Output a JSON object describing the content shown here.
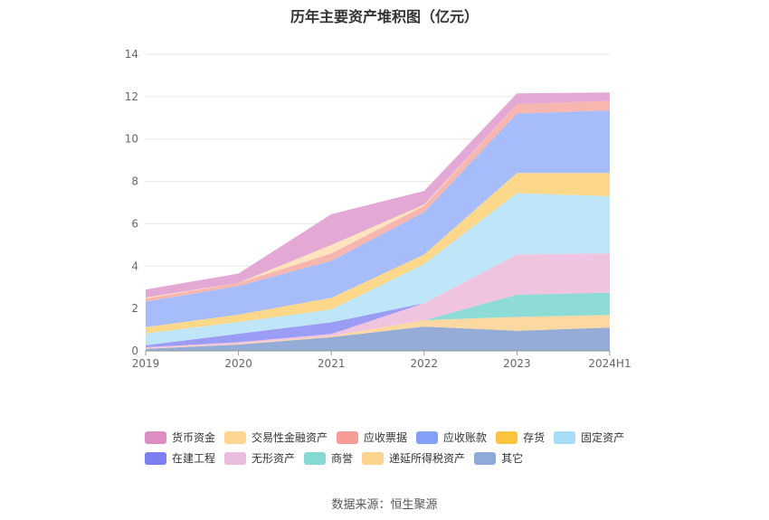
{
  "title": "历年主要资产堆积图（亿元）",
  "source": "数据来源：恒生聚源",
  "chart_data": {
    "type": "area",
    "stacked": true,
    "categories": [
      "2019",
      "2020",
      "2021",
      "2022",
      "2023",
      "2024H1"
    ],
    "ylim": [
      0,
      14
    ],
    "yticks": [
      0,
      2,
      4,
      6,
      8,
      10,
      12,
      14
    ],
    "grid": true,
    "legend_position": "bottom",
    "series": [
      {
        "name": "其它",
        "color": "#94acd6",
        "values": [
          0.1,
          0.3,
          0.65,
          1.15,
          0.95,
          1.1
        ]
      },
      {
        "name": "递延所得税资产",
        "color": "#fdd8a3",
        "values": [
          0.02,
          0.03,
          0.05,
          0.3,
          0.65,
          0.6
        ]
      },
      {
        "name": "商誉",
        "color": "#8ddcd6",
        "values": [
          0.0,
          0.0,
          0.0,
          0.0,
          1.05,
          1.05
        ]
      },
      {
        "name": "无形资产",
        "color": "#f0c3df",
        "values": [
          0.05,
          0.08,
          0.1,
          0.8,
          1.9,
          1.85
        ]
      },
      {
        "name": "在建工程",
        "color": "#9b9cf5",
        "values": [
          0.1,
          0.4,
          0.55,
          0.0,
          0.0,
          0.0
        ]
      },
      {
        "name": "固定资产",
        "color": "#bfe6f8",
        "values": [
          0.55,
          0.55,
          0.6,
          1.85,
          2.9,
          2.7
        ]
      },
      {
        "name": "存货",
        "color": "#fdd88a",
        "values": [
          0.3,
          0.35,
          0.55,
          0.45,
          0.95,
          1.1
        ]
      },
      {
        "name": "应收账款",
        "color": "#a6bcfb",
        "values": [
          1.2,
          1.35,
          1.75,
          2.0,
          2.8,
          2.95
        ]
      },
      {
        "name": "应收票据",
        "color": "#f8b6b0",
        "values": [
          0.15,
          0.15,
          0.35,
          0.3,
          0.45,
          0.45
        ]
      },
      {
        "name": "交易性金融资产",
        "color": "#fde3be",
        "values": [
          0.05,
          0.0,
          0.4,
          0.05,
          0.0,
          0.0
        ]
      },
      {
        "name": "货币资金",
        "color": "#e3a8d3",
        "values": [
          0.38,
          0.44,
          1.45,
          0.65,
          0.5,
          0.4
        ]
      }
    ]
  },
  "legend": {
    "rows": [
      [
        {
          "label": "货币资金",
          "color": "#dd8dc4"
        },
        {
          "label": "交易性金融资产",
          "color": "#fdd593"
        },
        {
          "label": "应收票据",
          "color": "#f59d94"
        },
        {
          "label": "应收账款",
          "color": "#82a0f7"
        },
        {
          "label": "存货",
          "color": "#fcc53f"
        },
        {
          "label": "固定资产",
          "color": "#a7dcf7"
        }
      ],
      [
        {
          "label": "在建工程",
          "color": "#7b7df0"
        },
        {
          "label": "无形资产",
          "color": "#e9bcdb"
        },
        {
          "label": "商誉",
          "color": "#86d8d2"
        },
        {
          "label": "递延所得税资产",
          "color": "#fdd48f"
        },
        {
          "label": "其它",
          "color": "#90aad8"
        }
      ]
    ]
  }
}
